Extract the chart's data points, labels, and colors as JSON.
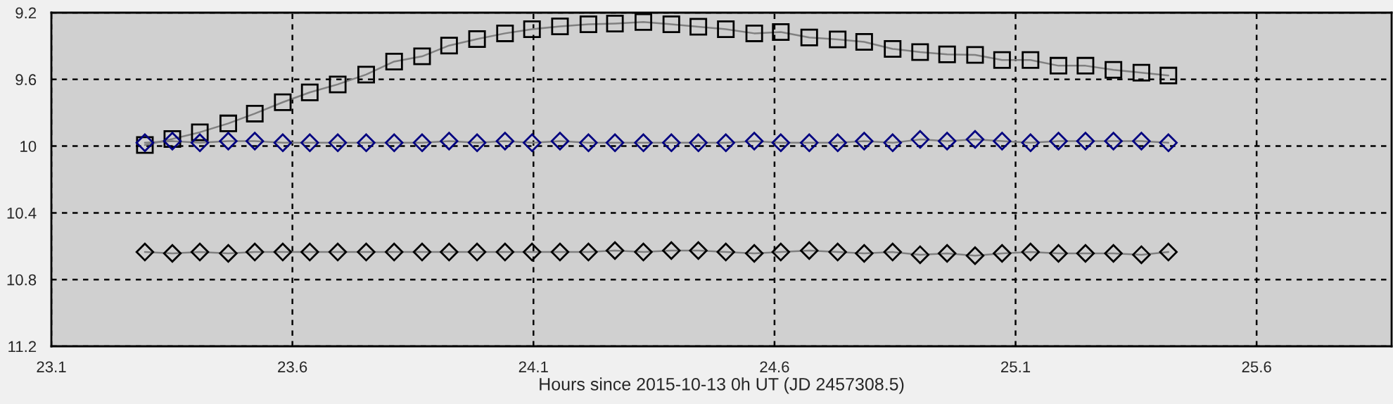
{
  "chart_data": {
    "type": "line",
    "xlabel": "Hours since 2015-10-13 0h UT (JD 2457308.5)",
    "x": [
      23.294,
      23.351,
      23.408,
      23.467,
      23.522,
      23.58,
      23.636,
      23.694,
      23.753,
      23.811,
      23.869,
      23.925,
      23.983,
      24.041,
      24.097,
      24.155,
      24.214,
      24.269,
      24.328,
      24.386,
      24.442,
      24.499,
      24.558,
      24.613,
      24.672,
      24.731,
      24.786,
      24.845,
      24.902,
      24.958,
      25.016,
      25.072,
      25.131,
      25.189,
      25.245,
      25.303,
      25.361,
      25.417
    ],
    "series": [
      {
        "color": "#000000",
        "marker": "square",
        "values": [
          9.993,
          9.957,
          9.917,
          9.864,
          9.805,
          9.737,
          9.678,
          9.63,
          9.571,
          9.493,
          9.462,
          9.397,
          9.358,
          9.324,
          9.299,
          9.282,
          9.27,
          9.265,
          9.256,
          9.27,
          9.284,
          9.299,
          9.324,
          9.316,
          9.349,
          9.36,
          9.375,
          9.417,
          9.436,
          9.45,
          9.453,
          9.484,
          9.484,
          9.518,
          9.518,
          9.543,
          9.56,
          9.577
        ]
      },
      {
        "color": "#000080",
        "marker": "diamond",
        "values": [
          9.98,
          9.97,
          9.98,
          9.97,
          9.97,
          9.98,
          9.98,
          9.98,
          9.98,
          9.98,
          9.98,
          9.97,
          9.98,
          9.97,
          9.98,
          9.97,
          9.98,
          9.98,
          9.98,
          9.98,
          9.98,
          9.98,
          9.97,
          9.98,
          9.98,
          9.98,
          9.97,
          9.98,
          9.96,
          9.97,
          9.96,
          9.97,
          9.98,
          9.97,
          9.97,
          9.97,
          9.97,
          9.98
        ]
      },
      {
        "color": "#000000",
        "marker": "diamond",
        "values": [
          10.635,
          10.643,
          10.635,
          10.643,
          10.635,
          10.635,
          10.635,
          10.635,
          10.635,
          10.635,
          10.635,
          10.635,
          10.635,
          10.635,
          10.635,
          10.635,
          10.635,
          10.626,
          10.635,
          10.626,
          10.626,
          10.635,
          10.643,
          10.635,
          10.626,
          10.635,
          10.643,
          10.635,
          10.651,
          10.643,
          10.657,
          10.643,
          10.635,
          10.643,
          10.643,
          10.643,
          10.651,
          10.635
        ]
      }
    ],
    "xlim": [
      23.1,
      25.88
    ],
    "xticks": [
      23.1,
      23.6,
      24.1,
      24.6,
      25.1,
      25.6
    ],
    "ylim": [
      11.2,
      9.2
    ],
    "yticks": [
      9.2,
      9.6,
      10,
      10.4,
      10.8,
      11.2
    ],
    "grid": true,
    "line_style": "solid"
  }
}
